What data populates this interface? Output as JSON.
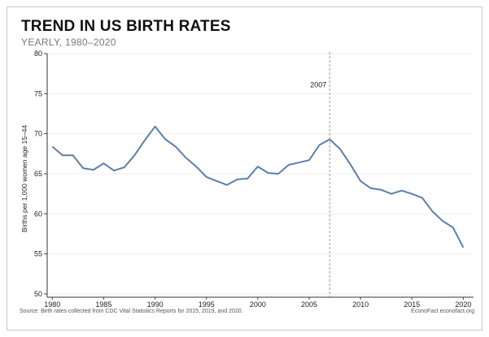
{
  "chart_data": {
    "type": "line",
    "title": "TREND IN US BIRTH RATES",
    "subtitle": "YEARLY, 1980–2020",
    "ylabel": "Births per 1,000 women age 15–44",
    "xlabel": "",
    "xlim": [
      1979.5,
      2021
    ],
    "ylim": [
      50,
      80
    ],
    "xticks": [
      1980,
      1985,
      1990,
      1995,
      2000,
      2005,
      2010,
      2015,
      2020
    ],
    "yticks": [
      50,
      55,
      60,
      65,
      70,
      75,
      80
    ],
    "grid": "horizontal",
    "line_color": "#5b7fa8",
    "annotation": {
      "label": "2007",
      "x": 2007,
      "style": "dashed-vertical"
    },
    "x": [
      1980,
      1981,
      1982,
      1983,
      1984,
      1985,
      1986,
      1987,
      1988,
      1989,
      1990,
      1991,
      1992,
      1993,
      1994,
      1995,
      1996,
      1997,
      1998,
      1999,
      2000,
      2001,
      2002,
      2003,
      2004,
      2005,
      2006,
      2007,
      2008,
      2009,
      2010,
      2011,
      2012,
      2013,
      2014,
      2015,
      2016,
      2017,
      2018,
      2019,
      2020
    ],
    "y": [
      68.4,
      67.3,
      67.3,
      65.7,
      65.5,
      66.3,
      65.4,
      65.8,
      67.3,
      69.2,
      70.9,
      69.3,
      68.4,
      67.0,
      65.9,
      64.6,
      64.1,
      63.6,
      64.3,
      64.4,
      65.9,
      65.1,
      65.0,
      66.1,
      66.4,
      66.7,
      68.6,
      69.3,
      68.1,
      66.2,
      64.1,
      63.2,
      63.0,
      62.5,
      62.9,
      62.5,
      62.0,
      60.3,
      59.1,
      58.3,
      55.8
    ]
  },
  "footer": {
    "source": "Source: Birth rates collected from CDC Vital Statistics Reports for 2015, 2019, and 2020.",
    "brand": "EconoFact  econofact.org"
  }
}
